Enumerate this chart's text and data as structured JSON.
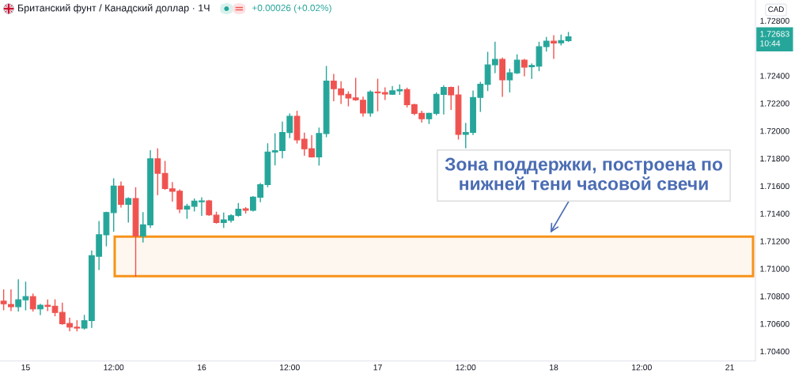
{
  "chart_data": {
    "type": "candlestick",
    "title": "Британский фунт / Канадский доллар · 1Ч",
    "ylabel": "CAD",
    "categories": [
      null,
      null,
      null,
      "15",
      null,
      null,
      null,
      null,
      null,
      null,
      null,
      null,
      null,
      null,
      null,
      "12:00",
      null,
      null,
      null,
      null,
      null,
      null,
      null,
      null,
      null,
      null,
      null,
      "16",
      null,
      null,
      null,
      null,
      null,
      null,
      null,
      null,
      null,
      null,
      null,
      "12:00",
      null,
      null,
      null,
      null,
      null,
      null,
      null,
      null,
      null,
      null,
      null,
      "17",
      null,
      null,
      null,
      null,
      null,
      null,
      null,
      null,
      null,
      null,
      null,
      "12:00",
      null,
      null,
      null,
      null,
      null,
      null,
      null,
      null,
      null,
      null,
      null,
      "18",
      null,
      null,
      null,
      null,
      null,
      null,
      null,
      null,
      null,
      null,
      null,
      "12:00",
      null,
      null,
      null,
      null,
      null,
      null,
      null,
      null,
      null,
      null,
      null,
      "21",
      null,
      null,
      null
    ],
    "ohlc": [
      [
        1.70764,
        1.70845,
        1.70701,
        1.70745
      ],
      [
        1.7074,
        1.70845,
        1.70696,
        1.70724
      ],
      [
        1.70724,
        1.70918,
        1.70692,
        1.70774
      ],
      [
        1.70774,
        1.70902,
        1.70701,
        1.70797
      ],
      [
        1.70797,
        1.70816,
        1.70692,
        1.70707
      ],
      [
        1.70707,
        1.7074,
        1.70667,
        1.70734
      ],
      [
        1.70734,
        1.70772,
        1.70696,
        1.70727
      ],
      [
        1.70727,
        1.70774,
        1.70658,
        1.70682
      ],
      [
        1.70682,
        1.70749,
        1.70596,
        1.706
      ],
      [
        1.70602,
        1.7064,
        1.70549,
        1.70575
      ],
      [
        1.70575,
        1.70621,
        1.70549,
        1.70568
      ],
      [
        1.70568,
        1.70661,
        1.70562,
        1.70623
      ],
      [
        1.70623,
        1.71128,
        1.70573,
        1.71094
      ],
      [
        1.7109,
        1.71342,
        1.70994,
        1.71246
      ],
      [
        1.71246,
        1.71409,
        1.71166,
        1.71407
      ],
      [
        1.71407,
        1.71652,
        1.71273,
        1.71599
      ],
      [
        1.71599,
        1.71629,
        1.71447,
        1.71467
      ],
      [
        1.71467,
        1.71514,
        1.71338,
        1.71509
      ],
      [
        1.71509,
        1.71587,
        1.70945,
        1.71237
      ],
      [
        1.71237,
        1.71407,
        1.71193,
        1.71318
      ],
      [
        1.71318,
        1.71855,
        1.713,
        1.71797
      ],
      [
        1.71797,
        1.71869,
        1.71537,
        1.71692
      ],
      [
        1.71692,
        1.71778,
        1.71576,
        1.71582
      ],
      [
        1.71579,
        1.71625,
        1.7149,
        1.71562
      ],
      [
        1.71562,
        1.71572,
        1.71407,
        1.71432
      ],
      [
        1.71432,
        1.71467,
        1.71365,
        1.71453
      ],
      [
        1.71453,
        1.71505,
        1.71419,
        1.7149
      ],
      [
        1.71486,
        1.71514,
        1.71387,
        1.71492
      ],
      [
        1.71492,
        1.71496,
        1.71387,
        1.7139
      ],
      [
        1.71388,
        1.71409,
        1.71331,
        1.71335
      ],
      [
        1.71335,
        1.71404,
        1.713,
        1.71354
      ],
      [
        1.7135,
        1.7139,
        1.71338,
        1.71384
      ],
      [
        1.71387,
        1.71473,
        1.71381,
        1.71432
      ],
      [
        1.71434,
        1.71442,
        1.71404,
        1.71424
      ],
      [
        1.71423,
        1.71522,
        1.71419,
        1.71519
      ],
      [
        1.71519,
        1.71618,
        1.71486,
        1.7161
      ],
      [
        1.7161,
        1.71906,
        1.71595,
        1.71847
      ],
      [
        1.71847,
        1.71979,
        1.71754,
        1.71857
      ],
      [
        1.71857,
        1.72064,
        1.71805,
        1.71989
      ],
      [
        1.71987,
        1.72123,
        1.71951,
        1.72106
      ],
      [
        1.72106,
        1.72142,
        1.71912,
        1.71935
      ],
      [
        1.71939,
        1.71983,
        1.71824,
        1.7187
      ],
      [
        1.7187,
        1.71964,
        1.71811,
        1.71811
      ],
      [
        1.71811,
        1.7202,
        1.71752,
        1.71981
      ],
      [
        1.71981,
        1.72467,
        1.71958,
        1.72362
      ],
      [
        1.72362,
        1.7241,
        1.72219,
        1.72306
      ],
      [
        1.72306,
        1.72356,
        1.72199,
        1.72262
      ],
      [
        1.72265,
        1.72283,
        1.72182,
        1.72238
      ],
      [
        1.72239,
        1.72381,
        1.72222,
        1.72226
      ],
      [
        1.72222,
        1.72245,
        1.72107,
        1.7213
      ],
      [
        1.7213,
        1.72291,
        1.72107,
        1.72283
      ],
      [
        1.72283,
        1.72375,
        1.72146,
        1.72276
      ],
      [
        1.72278,
        1.72312,
        1.72228,
        1.72268
      ],
      [
        1.72266,
        1.72322,
        1.72265,
        1.72291
      ],
      [
        1.72291,
        1.72333,
        1.72265,
        1.72299
      ],
      [
        1.72299,
        1.7231,
        1.72174,
        1.7219
      ],
      [
        1.7219,
        1.72193,
        1.72117,
        1.72127
      ],
      [
        1.72127,
        1.72142,
        1.72065,
        1.72088
      ],
      [
        1.72088,
        1.72127,
        1.72054,
        1.72127
      ],
      [
        1.72127,
        1.72276,
        1.72117,
        1.72265
      ],
      [
        1.72265,
        1.72328,
        1.72123,
        1.72316
      ],
      [
        1.72316,
        1.72318,
        1.72156,
        1.72261
      ],
      [
        1.72261,
        1.72324,
        1.71941,
        1.71974
      ],
      [
        1.71974,
        1.72054,
        1.71878,
        1.71989
      ],
      [
        1.71989,
        1.72289,
        1.71974,
        1.72243
      ],
      [
        1.72243,
        1.72352,
        1.72142,
        1.72339
      ],
      [
        1.72337,
        1.7257,
        1.72293,
        1.72479
      ],
      [
        1.72479,
        1.72643,
        1.72423,
        1.72519
      ],
      [
        1.72519,
        1.72529,
        1.72251,
        1.7237
      ],
      [
        1.7237,
        1.72448,
        1.72283,
        1.72421
      ],
      [
        1.72421,
        1.72552,
        1.72417,
        1.72513
      ],
      [
        1.72513,
        1.72519,
        1.724,
        1.72463
      ],
      [
        1.72465,
        1.72486,
        1.72381,
        1.72475
      ],
      [
        1.72469,
        1.72643,
        1.72437,
        1.72611
      ],
      [
        1.72611,
        1.72678,
        1.7258,
        1.72651
      ],
      [
        1.72651,
        1.72691,
        1.72526,
        1.72638
      ],
      [
        1.72639,
        1.72695,
        1.72624,
        1.72656
      ],
      [
        1.72655,
        1.72714,
        1.72649,
        1.72683
      ],
      null,
      null,
      null,
      null,
      null,
      null,
      null,
      null,
      null,
      null,
      null,
      null,
      null,
      null,
      null,
      null,
      null,
      null,
      null,
      null,
      null,
      null,
      null,
      null,
      null
    ],
    "colors": [
      "#ef5350",
      "#ef5350",
      "#26a69a",
      "#26a69a",
      "#ef5350",
      "#26a69a",
      "#ef5350",
      "#ef5350",
      "#ef5350",
      "#ef5350",
      "#ef5350",
      "#26a69a",
      "#26a69a",
      "#26a69a",
      "#26a69a",
      "#26a69a",
      "#ef5350",
      "#26a69a",
      "#ef5350",
      "#26a69a",
      "#26a69a",
      "#ef5350",
      "#ef5350",
      "#ef5350",
      "#ef5350",
      "#26a69a",
      "#26a69a",
      "#26a69a",
      "#ef5350",
      "#ef5350",
      "#26a69a",
      "#26a69a",
      "#26a69a",
      "#ef5350",
      "#26a69a",
      "#26a69a",
      "#26a69a",
      "#26a69a",
      "#26a69a",
      "#26a69a",
      "#ef5350",
      "#ef5350",
      "#ef5350",
      "#26a69a",
      "#26a69a",
      "#ef5350",
      "#ef5350",
      "#ef5350",
      "#ef5350",
      "#ef5350",
      "#26a69a",
      "#ef5350",
      "#ef5350",
      "#26a69a",
      "#26a69a",
      "#ef5350",
      "#ef5350",
      "#ef5350",
      "#26a69a",
      "#26a69a",
      "#26a69a",
      "#ef5350",
      "#ef5350",
      "#26a69a",
      "#26a69a",
      "#26a69a",
      "#26a69a",
      "#26a69a",
      "#ef5350",
      "#26a69a",
      "#26a69a",
      "#ef5350",
      "#26a69a",
      "#26a69a",
      "#26a69a",
      "#ef5350",
      "#26a69a",
      "#26a69a",
      null,
      null,
      null,
      null,
      null,
      null,
      null,
      null,
      null,
      null,
      null,
      null,
      null,
      null,
      null,
      null,
      null,
      null,
      null,
      null,
      null,
      null,
      null,
      null,
      null
    ],
    "ylim": [
      1.7033,
      1.7295
    ],
    "yticks": [
      {
        "value": 1.704,
        "label": "1.70400"
      },
      {
        "value": 1.706,
        "label": "1.70600"
      },
      {
        "value": 1.708,
        "label": "1.70800"
      },
      {
        "value": 1.71,
        "label": "1.71000"
      },
      {
        "value": 1.712,
        "label": "1.71200"
      },
      {
        "value": 1.714,
        "label": "1.71400"
      },
      {
        "value": 1.716,
        "label": "1.71600"
      },
      {
        "value": 1.718,
        "label": "1.71800"
      },
      {
        "value": 1.72,
        "label": "1.72000"
      },
      {
        "value": 1.722,
        "label": "1.72200"
      },
      {
        "value": 1.724,
        "label": "1.72400"
      },
      {
        "value": 1.728,
        "label": "1.72800"
      }
    ],
    "grid": false,
    "bands": [
      {
        "axis": "y",
        "from": 1.70945,
        "to": 1.71233,
        "color": "#f7931a"
      }
    ],
    "annotations": [
      "+0.00026 (+0.02%)",
      "1.72683\n10:44",
      {
        "text": "Зона поддержки, построена по\nнижней тени часовой свечи",
        "y": 1.71233
      }
    ]
  }
}
